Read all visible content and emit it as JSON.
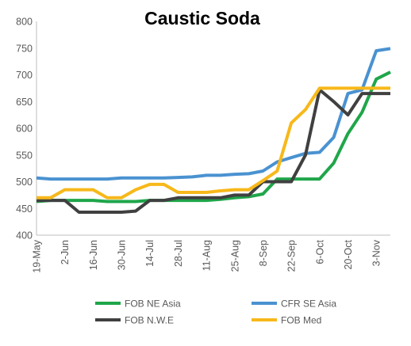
{
  "chart_data": {
    "type": "line",
    "title": "Caustic Soda",
    "xlabel": "",
    "ylabel": "",
    "ylim": [
      400,
      800
    ],
    "yticks": [
      "400",
      "450",
      "500",
      "550",
      "600",
      "650",
      "700",
      "750",
      "800"
    ],
    "x": [
      "19-May",
      "26-May",
      "2-Jun",
      "9-Jun",
      "16-Jun",
      "23-Jun",
      "30-Jun",
      "7-Jul",
      "14-Jul",
      "21-Jul",
      "28-Jul",
      "4-Aug",
      "11-Aug",
      "18-Aug",
      "25-Aug",
      "1-Sep",
      "8-Sep",
      "15-Sep",
      "22-Sep",
      "29-Sep",
      "6-Oct",
      "13-Oct",
      "20-Oct",
      "27-Oct",
      "3-Nov",
      "10-Nov"
    ],
    "xtick_labels": [
      "19-May",
      "2-Jun",
      "16-Jun",
      "30-Jun",
      "14-Jul",
      "28-Jul",
      "11-Aug",
      "25-Aug",
      "8-Sep",
      "22-Sep",
      "6-Oct",
      "20-Oct",
      "3-Nov"
    ],
    "grid": false,
    "legend_position": "bottom",
    "series": [
      {
        "name": "FOB NE Asia",
        "color": "#1fa64a",
        "values": [
          463,
          465,
          465,
          465,
          465,
          463,
          463,
          463,
          465,
          465,
          465,
          465,
          465,
          467,
          470,
          472,
          477,
          505,
          505,
          505,
          505,
          535,
          590,
          630,
          692,
          705
        ]
      },
      {
        "name": "CFR SE Asia",
        "color": "#4a92d1",
        "values": [
          507,
          505,
          505,
          505,
          505,
          505,
          507,
          507,
          507,
          507,
          508,
          509,
          512,
          512,
          514,
          515,
          520,
          537,
          545,
          553,
          555,
          583,
          665,
          672,
          745,
          749
        ]
      },
      {
        "name": "FOB N.W.E",
        "color": "#404040",
        "values": [
          465,
          465,
          465,
          443,
          443,
          443,
          443,
          445,
          465,
          465,
          470,
          470,
          470,
          470,
          475,
          475,
          500,
          500,
          500,
          550,
          672,
          650,
          625,
          665,
          665,
          665
        ]
      },
      {
        "name": "FOB Med",
        "color": "#f7b81a",
        "values": [
          470,
          470,
          485,
          485,
          485,
          470,
          470,
          485,
          495,
          495,
          480,
          480,
          480,
          483,
          485,
          485,
          502,
          520,
          610,
          635,
          675,
          675,
          675,
          675,
          675,
          675
        ]
      }
    ]
  }
}
